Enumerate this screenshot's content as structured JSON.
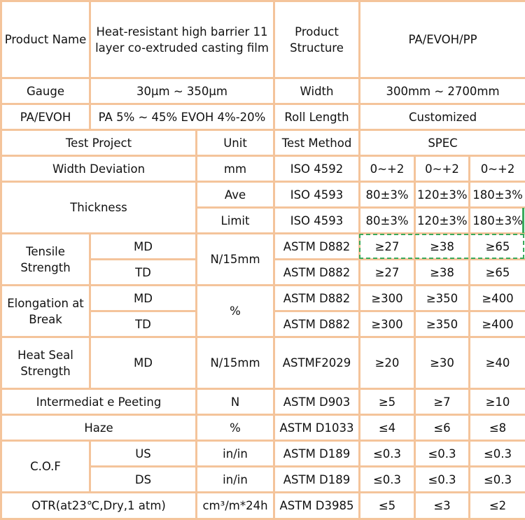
{
  "header": {
    "product_name_label": "Product Name",
    "product_name_value": "Heat-resistant high barrier 11 layer co-extruded casting film",
    "product_structure_label": "Product Structure",
    "product_structure_value": "PA/EVOH/PP",
    "gauge_label": "Gauge",
    "gauge_value": "30μm ~ 350μm",
    "width_label": "Width",
    "width_value": "300mm ~ 2700mm",
    "pa_evoh_label": "PA/EVOH",
    "pa_evoh_value": "PA 5% ~ 45%  EVOH 4%-20%",
    "roll_length_label": "Roll Length",
    "roll_length_value": "Customized"
  },
  "columns": {
    "test_project": "Test Project",
    "unit": "Unit",
    "test_method": "Test Method",
    "spec": "SPEC"
  },
  "rows": {
    "width_deviation": {
      "label": "Width Deviation",
      "unit": "mm",
      "method": "ISO 4592",
      "values": [
        "0~+2",
        "0~+2",
        "0~+2"
      ]
    },
    "thickness": {
      "label": "Thickness",
      "ave": {
        "sub": "Ave",
        "method": "ISO 4593",
        "values": [
          "80±3%",
          "120±3%",
          "180±3%"
        ]
      },
      "limit": {
        "sub": "Limit",
        "method": "ISO 4593",
        "values": [
          "80±3%",
          "120±3%",
          "180±3%"
        ]
      }
    },
    "tensile": {
      "label": "Tensile Strength",
      "unit": "N/15mm",
      "md": {
        "sub": "MD",
        "method": "ASTM D882",
        "values": [
          "≥27",
          "≥38",
          "≥65"
        ]
      },
      "td": {
        "sub": "TD",
        "method": "ASTM D882",
        "values": [
          "≥27",
          "≥38",
          "≥65"
        ]
      }
    },
    "elongation": {
      "label": "Elongation at Break",
      "unit": "%",
      "md": {
        "sub": "MD",
        "method": "ASTM D882",
        "values": [
          "≥300",
          "≥350",
          "≥400"
        ]
      },
      "td": {
        "sub": "TD",
        "method": "ASTM D882",
        "values": [
          "≥300",
          "≥350",
          "≥400"
        ]
      }
    },
    "heat_seal": {
      "label": "Heat Seal Strength",
      "sub": "MD",
      "unit": "N/15mm",
      "method": "ASTMF2029",
      "values": [
        "≥20",
        "≥30",
        "≥40"
      ]
    },
    "peeting": {
      "label": "Intermediat e Peeting",
      "unit": "N",
      "method": "ASTM D903",
      "values": [
        "≥5",
        "≥7",
        "≥10"
      ]
    },
    "haze": {
      "label": "Haze",
      "unit": "%",
      "method": "ASTM D1033",
      "values": [
        "≤4",
        "≤6",
        "≤8"
      ]
    },
    "cof": {
      "label": "C.O.F",
      "us": {
        "sub": "US",
        "unit": "in/in",
        "method": "ASTM D189",
        "values": [
          "≤0.3",
          "≤0.3",
          "≤0.3"
        ]
      },
      "ds": {
        "sub": "DS",
        "unit": "in/in",
        "method": "ASTM D189",
        "values": [
          "≤0.3",
          "≤0.3",
          "≤0.3"
        ]
      }
    },
    "otr": {
      "label": "OTR(at23℃,Dry,1 atm)",
      "unit": "cm³/m*24h",
      "method": "ASTM D3985",
      "values": [
        "≤5",
        "≤3",
        "≤2"
      ]
    }
  },
  "colors": {
    "border": "#f4c49b",
    "highlight": "#3aaa5c"
  }
}
